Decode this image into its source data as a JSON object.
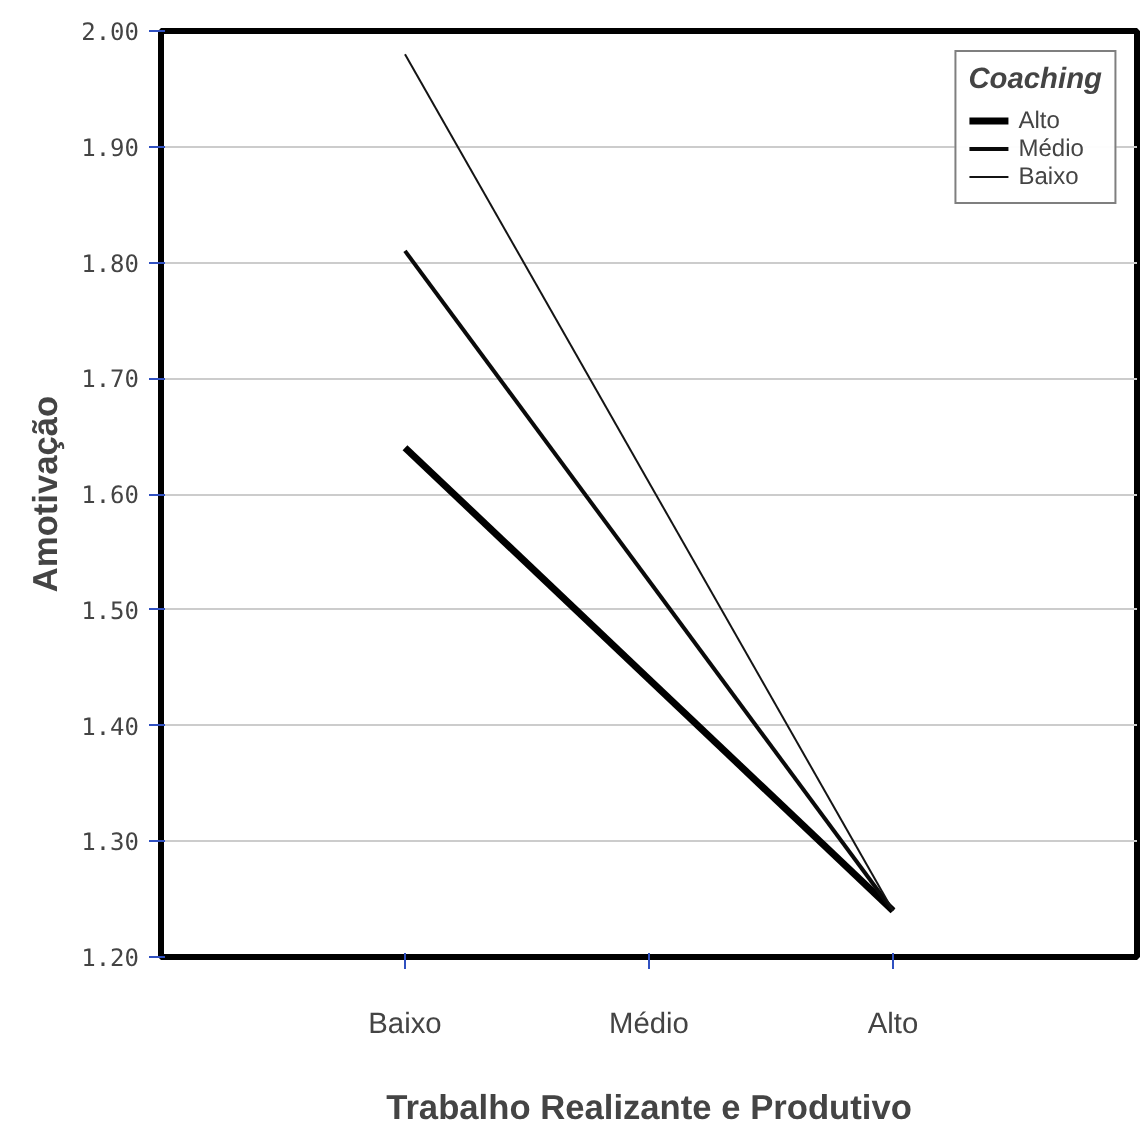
{
  "chart_data": {
    "type": "line",
    "xlabel": "Trabalho Realizante e Produtivo",
    "ylabel": "Amotivação",
    "legend_title": "Coaching",
    "categories": [
      "Baixo",
      "Médio",
      "Alto"
    ],
    "series": [
      {
        "name": "Alto",
        "color": "#000000",
        "values": [
          1.64,
          1.44,
          1.24
        ]
      },
      {
        "name": "Médio",
        "color": "#0a0a0a",
        "values": [
          1.81,
          1.525,
          1.24
        ]
      },
      {
        "name": "Baixo",
        "color": "#141414",
        "values": [
          1.98,
          1.61,
          1.24
        ]
      }
    ],
    "ylim": [
      1.2,
      2.0
    ],
    "yticks": [
      {
        "value": 1.2,
        "label": "1.20"
      },
      {
        "value": 1.3,
        "label": "1.30"
      },
      {
        "value": 1.4,
        "label": "1.40"
      },
      {
        "value": 1.5,
        "label": "1.50"
      },
      {
        "value": 1.6,
        "label": "1.60"
      },
      {
        "value": 1.7,
        "label": "1.70"
      },
      {
        "value": 1.8,
        "label": "1.80"
      },
      {
        "value": 1.9,
        "label": "1.90"
      },
      {
        "value": 2.0,
        "label": "2.00"
      }
    ],
    "grid": "y",
    "legend": "top right",
    "marker": "none",
    "line_style": "solid"
  }
}
